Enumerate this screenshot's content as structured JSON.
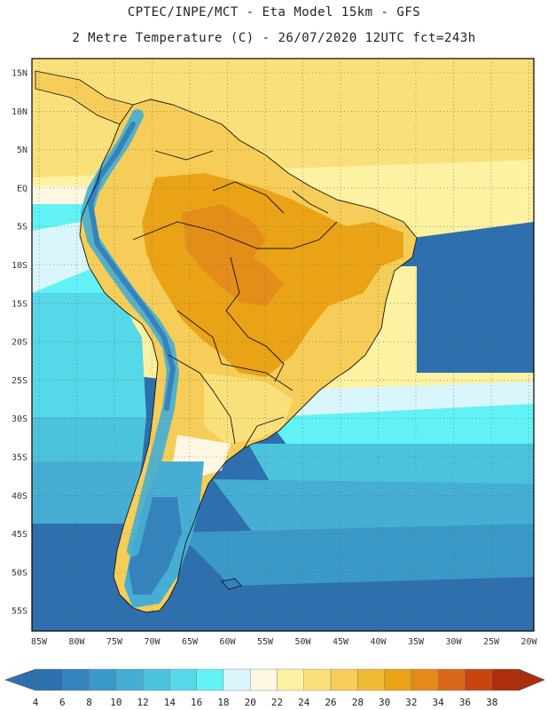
{
  "header": {
    "line1": "CPTEC/INPE/MCT -  Eta Model 15km - GFS",
    "line2": "2 Metre Temperature (C) - 26/07/2020 12UTC fct=243h"
  },
  "map": {
    "lat_labels": [
      "15N",
      "10N",
      "5N",
      "EQ",
      "5S",
      "10S",
      "15S",
      "20S",
      "25S",
      "30S",
      "35S",
      "40S",
      "45S",
      "50S",
      "55S"
    ],
    "lon_labels": [
      "85W",
      "80W",
      "75W",
      "70W",
      "65W",
      "60W",
      "55W",
      "50W",
      "45W",
      "40W",
      "35W",
      "30W",
      "25W",
      "20W"
    ]
  },
  "colorbar": {
    "labels": [
      "4",
      "6",
      "8",
      "10",
      "12",
      "14",
      "16",
      "18",
      "20",
      "22",
      "24",
      "26",
      "28",
      "30",
      "32",
      "34",
      "36",
      "38"
    ],
    "colors": [
      "#2e6fae",
      "#3583bd",
      "#3a99c8",
      "#46aed3",
      "#4cc3dd",
      "#55d8e8",
      "#62f2f6",
      "#d8f6fb",
      "#fdf8e4",
      "#fdf1a2",
      "#f9e07a",
      "#f5cd58",
      "#efbb35",
      "#eaa316",
      "#e38a1a",
      "#d9671a",
      "#c8450f",
      "#ad2d0c"
    ]
  },
  "colors": {
    "ocean_south_deep": "#2e6fae",
    "ocean_south_mid": "#3a99c8",
    "ocean_cyan": "#62f2f6",
    "ocean_warm": "#fdf1a2",
    "land_hot": "#eaa316",
    "land_warm": "#f5cd58",
    "andes_cold": "#3583bd",
    "border": "#111111"
  }
}
